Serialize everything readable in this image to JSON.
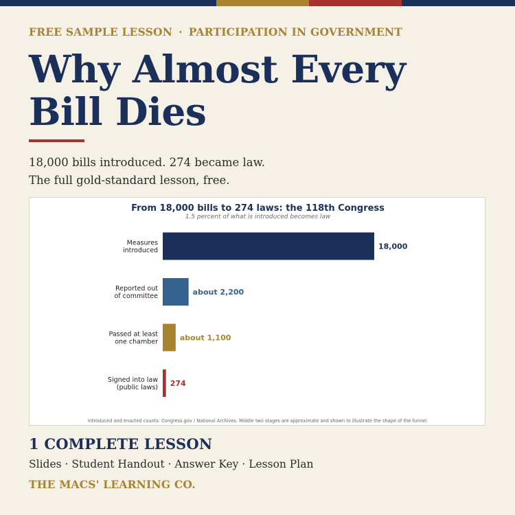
{
  "colors": {
    "navy": "#1b2f5b",
    "gold": "#a88331",
    "red": "#a8322d",
    "steel_blue": "#35618f",
    "background": "#f6f1e7"
  },
  "header": {
    "eyebrow_left": "FREE SAMPLE LESSON",
    "eyebrow_sep": "·",
    "eyebrow_right": "PARTICIPATION IN GOVERNMENT",
    "title_line1": "Why Almost Every",
    "title_line2": "Bill Dies",
    "subtitle_line1": "18,000 bills introduced. 274 became law.",
    "subtitle_line2": "The full gold-standard lesson, free."
  },
  "chart_data": {
    "type": "bar",
    "orientation": "horizontal",
    "title": "From 18,000 bills to 274 laws: the 118th Congress",
    "subtitle": "1.5 percent of what is introduced becomes law",
    "categories": [
      [
        "Measures",
        "introduced"
      ],
      [
        "Reported out",
        "of committee"
      ],
      [
        "Passed at least",
        "one chamber"
      ],
      [
        "Signed into law",
        "(public laws)"
      ]
    ],
    "values": [
      18000,
      2200,
      1100,
      274
    ],
    "data_labels": [
      "18,000",
      "about 2,200",
      "about 1,100",
      "274"
    ],
    "bar_colors": [
      "#1b2f5b",
      "#35618f",
      "#a88331",
      "#a8322d"
    ],
    "xlim": [
      0,
      18000
    ],
    "grid": false,
    "source_note": "Introduced and enacted counts: Congress.gov / National Archives. Middle two stages are approximate and shown to illustrate the shape of the funnel."
  },
  "footer": {
    "lesson_heading": "1 COMPLETE LESSON",
    "deliverables": "Slides · Student Handout · Answer Key · Lesson Plan",
    "brand": "THE MACS' LEARNING CO."
  }
}
